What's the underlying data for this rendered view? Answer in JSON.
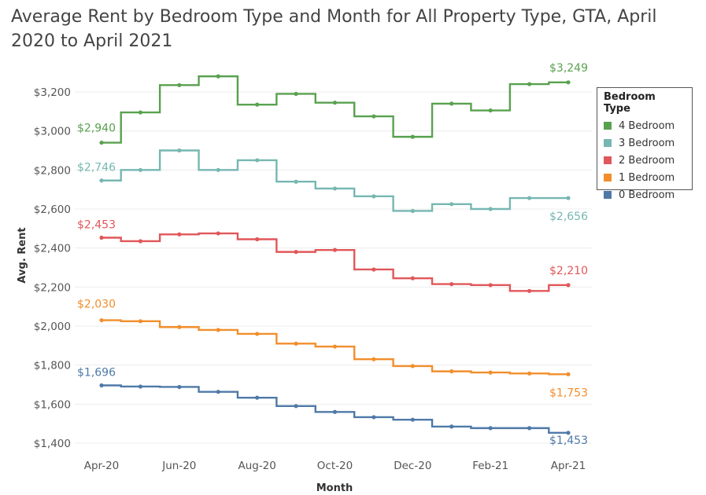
{
  "chart_data": {
    "type": "line",
    "title": "Average Rent by Bedroom Type and Month for All Property Type, GTA, April 2020 to April 2021",
    "xlabel": "Month",
    "ylabel": "Avg. Rent",
    "ylim": [
      1360,
      3340
    ],
    "yticks": [
      "$1,400",
      "$1,600",
      "$1,800",
      "$2,000",
      "$2,200",
      "$2,400",
      "$2,600",
      "$2,800",
      "$3,000",
      "$3,200"
    ],
    "ytick_values": [
      1400,
      1600,
      1800,
      2000,
      2200,
      2400,
      2600,
      2800,
      3000,
      3200
    ],
    "categories": [
      "Apr-20",
      "May-20",
      "Jun-20",
      "Jul-20",
      "Aug-20",
      "Sep-20",
      "Oct-20",
      "Nov-20",
      "Dec-20",
      "Jan-21",
      "Feb-21",
      "Mar-21",
      "Apr-21"
    ],
    "xtick_labels": [
      "Apr-20",
      "Jun-20",
      "Aug-20",
      "Oct-20",
      "Dec-20",
      "Feb-21",
      "Apr-21"
    ],
    "xtick_indices": [
      0,
      2,
      4,
      6,
      8,
      10,
      12
    ],
    "grid": true,
    "legend": {
      "title": "Bedroom Type",
      "placement": "right",
      "items": [
        {
          "label": "4 Bedroom",
          "color": "#59a14f"
        },
        {
          "label": "3 Bedroom",
          "color": "#76b7b2"
        },
        {
          "label": "2 Bedroom",
          "color": "#e15759"
        },
        {
          "label": "1 Bedroom",
          "color": "#f28e2b"
        },
        {
          "label": "0 Bedroom",
          "color": "#4e79a7"
        }
      ]
    },
    "series": [
      {
        "name": "4 Bedroom",
        "color": "#59a14f",
        "values": [
          2940,
          3095,
          3235,
          3280,
          3135,
          3190,
          3145,
          3075,
          2970,
          3140,
          3105,
          3240,
          3249
        ],
        "start_label": "$2,940",
        "end_label": "$3,249"
      },
      {
        "name": "3 Bedroom",
        "color": "#76b7b2",
        "values": [
          2746,
          2800,
          2900,
          2800,
          2850,
          2740,
          2705,
          2665,
          2590,
          2625,
          2600,
          2656,
          2656
        ],
        "start_label": "$2,746",
        "end_label": "$2,656"
      },
      {
        "name": "2 Bedroom",
        "color": "#e15759",
        "values": [
          2453,
          2435,
          2470,
          2475,
          2445,
          2380,
          2390,
          2290,
          2245,
          2215,
          2210,
          2180,
          2210
        ],
        "start_label": "$2,453",
        "end_label": "$2,210"
      },
      {
        "name": "1 Bedroom",
        "color": "#f28e2b",
        "values": [
          2030,
          2025,
          1995,
          1980,
          1960,
          1910,
          1895,
          1830,
          1795,
          1768,
          1762,
          1757,
          1753
        ],
        "start_label": "$2,030",
        "end_label": "$1,753"
      },
      {
        "name": "0 Bedroom",
        "color": "#4e79a7",
        "values": [
          1696,
          1690,
          1688,
          1663,
          1633,
          1590,
          1560,
          1533,
          1520,
          1485,
          1477,
          1477,
          1453
        ],
        "start_label": "$1,696",
        "end_label": "$1,453"
      }
    ]
  }
}
